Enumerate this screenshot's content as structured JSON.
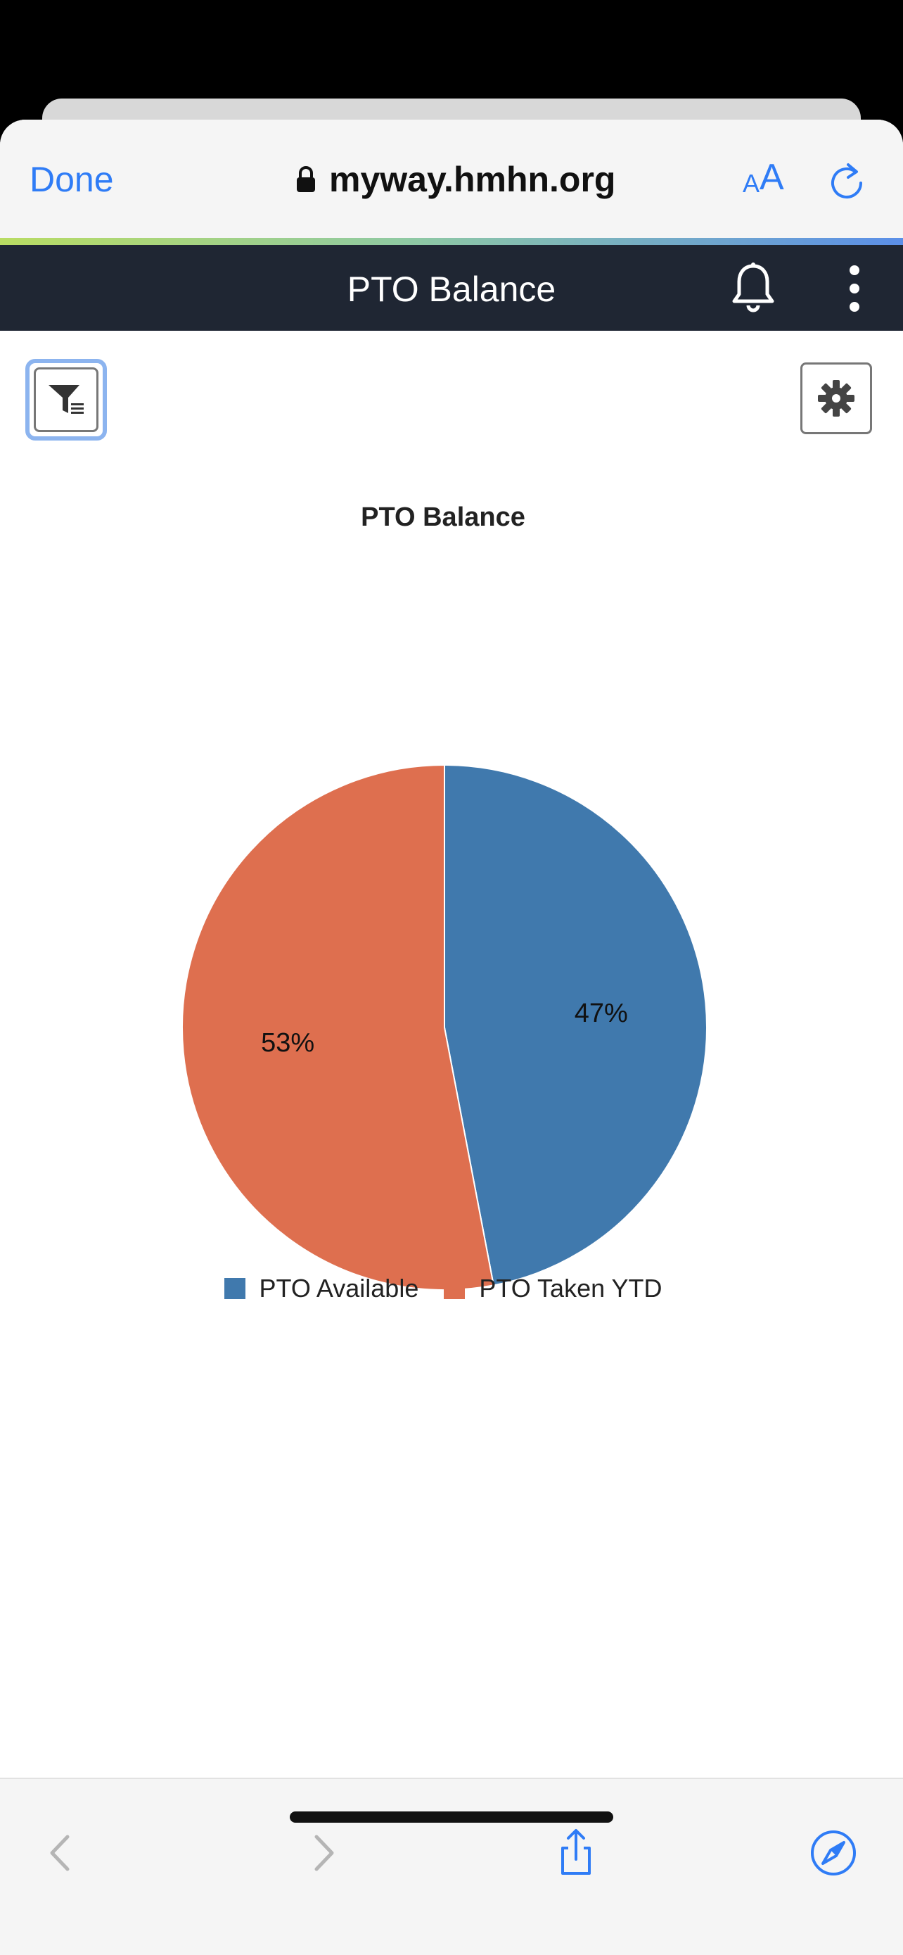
{
  "browser": {
    "done_label": "Done",
    "url": "myway.hmhn.org",
    "text_size_small": "A",
    "text_size_large": "A"
  },
  "app": {
    "title": "PTO Balance"
  },
  "chart_data": {
    "type": "pie",
    "title": "PTO Balance",
    "categories": [
      "PTO Available",
      "PTO Taken YTD"
    ],
    "values": [
      47,
      53
    ],
    "labels": [
      "47%",
      "53%"
    ],
    "colors": [
      "#4079ad",
      "#de6f4f"
    ],
    "legend": "bottom"
  }
}
